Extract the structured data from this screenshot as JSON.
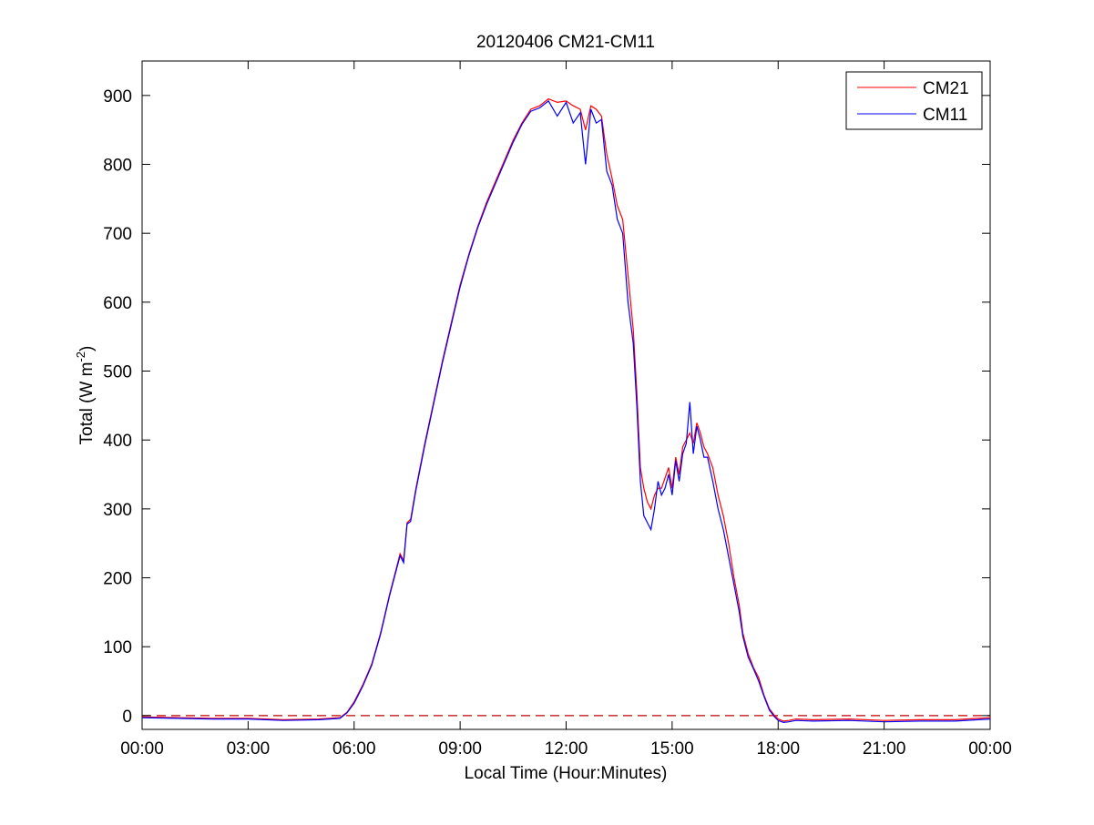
{
  "chart_data": {
    "type": "line",
    "title": "20120406 CM21-CM11",
    "xlabel": "Local Time (Hour:Minutes)",
    "ylabel": "Total (W m",
    "ylabel_sup": "-2",
    "ylabel_close": ")",
    "xlim": [
      0,
      24
    ],
    "ylim": [
      -20,
      950
    ],
    "x_ticks": [
      0,
      3,
      6,
      9,
      12,
      15,
      18,
      21,
      24
    ],
    "x_tick_labels": [
      "00:00",
      "03:00",
      "06:00",
      "09:00",
      "12:00",
      "15:00",
      "18:00",
      "21:00",
      "00:00"
    ],
    "y_ticks": [
      0,
      100,
      200,
      300,
      400,
      500,
      600,
      700,
      800,
      900
    ],
    "y_tick_labels": [
      "0",
      "100",
      "200",
      "300",
      "400",
      "500",
      "600",
      "700",
      "800",
      "900"
    ],
    "grid": false,
    "legend_position": "top-right",
    "reference_line": {
      "y": 0,
      "color": "#c00000",
      "style": "dashed"
    },
    "series": [
      {
        "name": "CM21",
        "color": "#ff0000",
        "x": [
          0,
          1,
          2,
          3,
          4,
          5,
          5.6,
          5.8,
          6,
          6.25,
          6.5,
          6.75,
          7,
          7.15,
          7.3,
          7.4,
          7.5,
          7.6,
          7.75,
          8,
          8.25,
          8.5,
          8.75,
          9,
          9.25,
          9.5,
          9.75,
          10,
          10.25,
          10.5,
          10.75,
          11,
          11.25,
          11.5,
          11.75,
          12,
          12.2,
          12.4,
          12.55,
          12.7,
          12.85,
          13,
          13.15,
          13.3,
          13.45,
          13.6,
          13.75,
          13.9,
          14,
          14.1,
          14.2,
          14.3,
          14.4,
          14.5,
          14.6,
          14.7,
          14.8,
          14.9,
          15,
          15.1,
          15.2,
          15.3,
          15.4,
          15.5,
          15.6,
          15.7,
          15.8,
          15.9,
          16,
          16.15,
          16.3,
          16.45,
          16.6,
          16.75,
          16.9,
          17,
          17.15,
          17.3,
          17.45,
          17.6,
          17.75,
          17.9,
          18,
          18.15,
          18.3,
          18.5,
          19,
          20,
          21,
          22,
          23,
          24
        ],
        "y": [
          -2,
          -3,
          -4,
          -4,
          -6,
          -5,
          -3,
          5,
          20,
          45,
          75,
          120,
          175,
          205,
          235,
          225,
          280,
          285,
          330,
          395,
          455,
          515,
          570,
          625,
          670,
          710,
          745,
          775,
          805,
          835,
          860,
          880,
          885,
          895,
          890,
          892,
          885,
          880,
          850,
          885,
          880,
          870,
          815,
          780,
          740,
          720,
          640,
          560,
          470,
          360,
          330,
          310,
          300,
          320,
          330,
          330,
          345,
          360,
          330,
          375,
          350,
          390,
          400,
          410,
          395,
          425,
          410,
          390,
          380,
          360,
          320,
          290,
          250,
          200,
          160,
          120,
          90,
          70,
          55,
          30,
          10,
          0,
          -5,
          -8,
          -7,
          -5,
          -6,
          -5,
          -7,
          -6,
          -6,
          -3
        ]
      },
      {
        "name": "CM11",
        "color": "#0000ff",
        "x": [
          0,
          1,
          2,
          3,
          4,
          5,
          5.6,
          5.8,
          6,
          6.25,
          6.5,
          6.75,
          7,
          7.15,
          7.3,
          7.4,
          7.5,
          7.6,
          7.75,
          8,
          8.25,
          8.5,
          8.75,
          9,
          9.25,
          9.5,
          9.75,
          10,
          10.25,
          10.5,
          10.75,
          11,
          11.25,
          11.5,
          11.75,
          12,
          12.2,
          12.4,
          12.55,
          12.7,
          12.85,
          13,
          13.15,
          13.3,
          13.45,
          13.6,
          13.75,
          13.9,
          14,
          14.1,
          14.2,
          14.3,
          14.4,
          14.5,
          14.6,
          14.7,
          14.8,
          14.9,
          15,
          15.1,
          15.2,
          15.3,
          15.4,
          15.5,
          15.6,
          15.7,
          15.8,
          15.9,
          16,
          16.15,
          16.3,
          16.45,
          16.6,
          16.75,
          16.9,
          17,
          17.15,
          17.3,
          17.45,
          17.6,
          17.75,
          17.9,
          18,
          18.15,
          18.3,
          18.5,
          19,
          20,
          21,
          22,
          23,
          24
        ],
        "y": [
          -3,
          -4,
          -5,
          -5,
          -7,
          -6,
          -4,
          4,
          18,
          43,
          73,
          118,
          173,
          203,
          232,
          222,
          278,
          282,
          327,
          392,
          452,
          512,
          567,
          622,
          668,
          708,
          742,
          772,
          802,
          832,
          858,
          877,
          882,
          892,
          870,
          890,
          860,
          875,
          800,
          880,
          860,
          865,
          790,
          770,
          720,
          700,
          600,
          540,
          450,
          340,
          290,
          280,
          270,
          300,
          340,
          320,
          330,
          350,
          320,
          370,
          340,
          380,
          395,
          455,
          380,
          420,
          400,
          375,
          375,
          340,
          300,
          270,
          230,
          190,
          150,
          115,
          85,
          68,
          50,
          28,
          8,
          -2,
          -7,
          -10,
          -9,
          -7,
          -8,
          -7,
          -9,
          -8,
          -8,
          -5
        ]
      }
    ]
  }
}
